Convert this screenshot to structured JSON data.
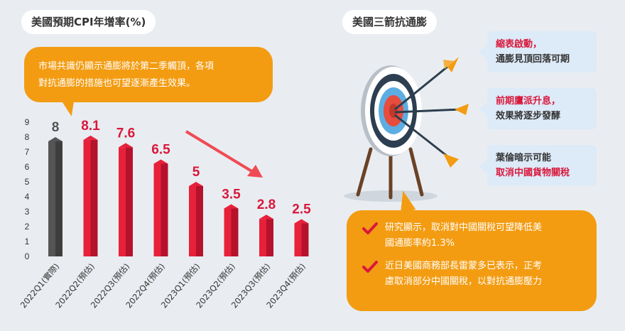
{
  "left_pill": "美國預期CPI年增率(%)",
  "right_pill": "美國三箭抗通膨",
  "bubble": {
    "line1": "市場共識仍顯示通膨將於第二季觸頂，各項",
    "line2": "對抗通膨的措施也可望逐漸產生效果。"
  },
  "notes": [
    {
      "red": "縮表啟動，",
      "line2": "通膨見頂回落可期",
      "red_first": true
    },
    {
      "red": "前期鷹派升息，",
      "line2": "效果將逐步發酵",
      "red_first": true
    },
    {
      "line1": "葉倫暗示可能",
      "red": "取消中國貨物關稅",
      "red_first": false
    }
  ],
  "info_items": [
    {
      "line1": "研究顯示，取消對中國關稅可望降低美",
      "line2": "國通膨率約1.3%"
    },
    {
      "line1": "近日美國商務部長雷蒙多已表示，正考",
      "line2": "慮取消部分中國關稅，以對抗通膨壓力"
    }
  ],
  "colors": {
    "bar_first": "#555555",
    "bar_rest": "#e8213b",
    "label_first": "#555555",
    "label_rest": "#d9183b",
    "accent": "#f39c12"
  },
  "chart_data": {
    "type": "bar",
    "categories": [
      "2022Q1(實際)",
      "2022Q2(預估)",
      "2022Q3(預估)",
      "2022Q4(預估)",
      "2023Q1(預估)",
      "2023Q2(預估)",
      "2023Q3(預估)",
      "2023Q4(預估)"
    ],
    "values": [
      8,
      8.1,
      7.6,
      6.5,
      5,
      3.5,
      2.8,
      2.5
    ],
    "value_labels": [
      "8",
      "8.1",
      "7.6",
      "6.5",
      "5",
      "3.5",
      "2.8",
      "2.5"
    ],
    "ylim": [
      0,
      9
    ],
    "yticks": [
      "0",
      "1",
      "2",
      "3",
      "4",
      "5",
      "6",
      "7",
      "8",
      "9"
    ],
    "grid": false,
    "trend_arrow": "down-right"
  }
}
